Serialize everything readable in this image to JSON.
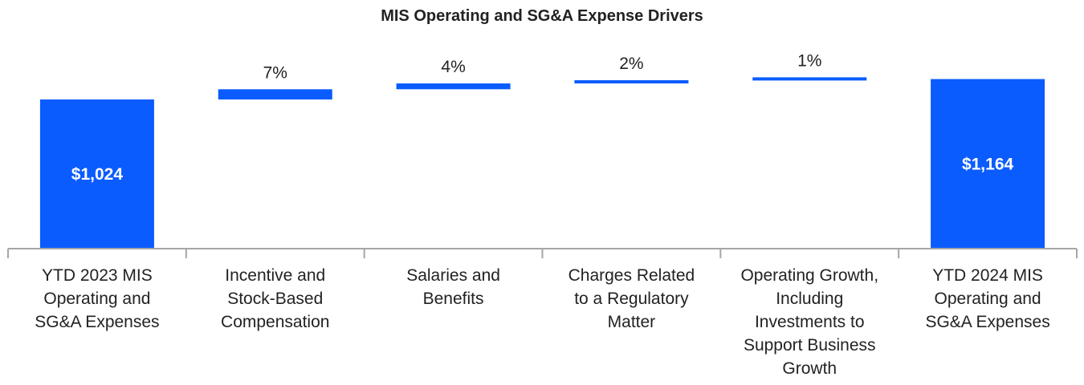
{
  "chart_data": {
    "type": "bar",
    "subtype": "waterfall",
    "title": "MIS Operating and SG&A Expense Drivers",
    "xlabel": "",
    "ylabel": "",
    "categories": [
      [
        "YTD 2023 MIS",
        "Operating and",
        "SG&A Expenses"
      ],
      [
        "Incentive and",
        "Stock-Based",
        "Compensation"
      ],
      [
        "Salaries and",
        "Benefits"
      ],
      [
        "Charges Related",
        "to a Regulatory",
        "Matter"
      ],
      [
        "Operating Growth,",
        "Including",
        "Investments to",
        "Support Business",
        "Growth"
      ],
      [
        "YTD 2024 MIS",
        "Operating and",
        "SG&A Expenses"
      ]
    ],
    "bars": [
      {
        "kind": "total",
        "value": 1024,
        "label": "$1,024"
      },
      {
        "kind": "increase",
        "percent": 7,
        "label": "7%"
      },
      {
        "kind": "increase",
        "percent": 4,
        "label": "4%"
      },
      {
        "kind": "increase",
        "percent": 2,
        "label": "2%"
      },
      {
        "kind": "increase",
        "percent": 1,
        "label": "1%"
      },
      {
        "kind": "total",
        "value": 1164,
        "label": "$1,164"
      }
    ],
    "grid": false,
    "legend": "none",
    "colors": {
      "bar": "#0a5cff",
      "axis": "#a6a6a6",
      "text": "#222222",
      "inbar_text": "#ffffff"
    }
  }
}
